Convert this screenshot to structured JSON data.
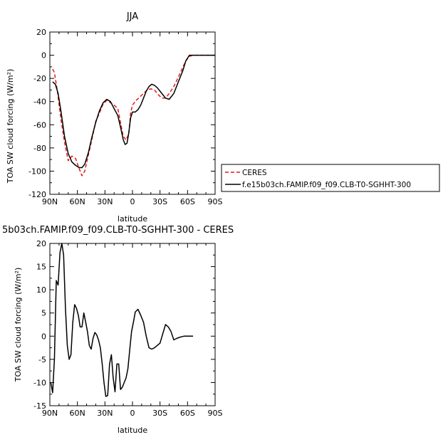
{
  "chart_data": [
    {
      "type": "line",
      "title": "JJA",
      "xlabel": "latitude",
      "ylabel": "TOA SW cloud forcing (W/m²)",
      "xlim": [
        90,
        -90
      ],
      "ylim": [
        -120,
        20
      ],
      "xtick_values": [
        90,
        60,
        30,
        0,
        -30,
        -60,
        -90
      ],
      "xtick_labels": [
        "90N",
        "60N",
        "30N",
        "0",
        "30S",
        "60S",
        "90S"
      ],
      "yticks": [
        20,
        0,
        -20,
        -40,
        -60,
        -80,
        -100,
        -120
      ],
      "legend": "right",
      "series": [
        {
          "name": "CERES",
          "color": "#e41a1c",
          "style": "dashed",
          "points": [
            [
              87,
              -12
            ],
            [
              85,
              -15
            ],
            [
              82,
              -30
            ],
            [
              78,
              -55
            ],
            [
              74,
              -75
            ],
            [
              70,
              -91
            ],
            [
              66,
              -87
            ],
            [
              62,
              -89
            ],
            [
              58,
              -98
            ],
            [
              55,
              -104
            ],
            [
              52,
              -100
            ],
            [
              48,
              -86
            ],
            [
              44,
              -72
            ],
            [
              40,
              -57
            ],
            [
              36,
              -50
            ],
            [
              32,
              -42
            ],
            [
              28,
              -39
            ],
            [
              24,
              -41
            ],
            [
              20,
              -43
            ],
            [
              16,
              -46
            ],
            [
              13,
              -58
            ],
            [
              10,
              -70
            ],
            [
              7,
              -73
            ],
            [
              4,
              -68
            ],
            [
              2,
              -50
            ],
            [
              0,
              -43
            ],
            [
              -4,
              -39
            ],
            [
              -8,
              -36
            ],
            [
              -12,
              -33
            ],
            [
              -16,
              -30
            ],
            [
              -20,
              -29
            ],
            [
              -24,
              -30
            ],
            [
              -28,
              -34
            ],
            [
              -32,
              -37
            ],
            [
              -36,
              -37
            ],
            [
              -40,
              -33
            ],
            [
              -45,
              -27
            ],
            [
              -50,
              -19
            ],
            [
              -55,
              -10
            ],
            [
              -58,
              -5
            ],
            [
              -62,
              -1
            ],
            [
              -66,
              0
            ],
            [
              -70,
              0
            ],
            [
              -80,
              0
            ],
            [
              -90,
              0
            ]
          ]
        },
        {
          "name": "f.e15b03ch.FAMIP.f09_f09.CLB-T0-SGHHT-300",
          "color": "#000000",
          "style": "solid",
          "points": [
            [
              87,
              -23
            ],
            [
              84,
              -25
            ],
            [
              81,
              -33
            ],
            [
              78,
              -48
            ],
            [
              74,
              -70
            ],
            [
              70,
              -85
            ],
            [
              66,
              -92
            ],
            [
              62,
              -95
            ],
            [
              58,
              -97
            ],
            [
              55,
              -97
            ],
            [
              52,
              -94
            ],
            [
              48,
              -84
            ],
            [
              44,
              -70
            ],
            [
              40,
              -58
            ],
            [
              36,
              -48
            ],
            [
              32,
              -41
            ],
            [
              28,
              -38
            ],
            [
              24,
              -40
            ],
            [
              20,
              -46
            ],
            [
              16,
              -52
            ],
            [
              13,
              -62
            ],
            [
              10,
              -73
            ],
            [
              8,
              -77
            ],
            [
              6,
              -76
            ],
            [
              4,
              -67
            ],
            [
              2,
              -54
            ],
            [
              0,
              -49
            ],
            [
              -3,
              -49
            ],
            [
              -6,
              -47
            ],
            [
              -9,
              -43
            ],
            [
              -12,
              -37
            ],
            [
              -15,
              -31
            ],
            [
              -18,
              -27
            ],
            [
              -21,
              -25
            ],
            [
              -24,
              -26
            ],
            [
              -27,
              -28
            ],
            [
              -30,
              -31
            ],
            [
              -33,
              -34
            ],
            [
              -36,
              -37
            ],
            [
              -40,
              -38
            ],
            [
              -45,
              -33
            ],
            [
              -50,
              -23
            ],
            [
              -55,
              -13
            ],
            [
              -58,
              -5
            ],
            [
              -62,
              0
            ],
            [
              -66,
              0
            ],
            [
              -70,
              0
            ],
            [
              -80,
              0
            ],
            [
              -90,
              0
            ]
          ]
        }
      ]
    },
    {
      "type": "line",
      "title": "5b03ch.FAMIP.f09_f09.CLB-T0-SGHHT-300 - CERES",
      "xlabel": "latitude",
      "ylabel": "TOA SW cloud forcing (W/m²)",
      "xlim": [
        90,
        -90
      ],
      "ylim": [
        -15,
        20
      ],
      "xtick_values": [
        90,
        60,
        30,
        0,
        -30,
        -60,
        -90
      ],
      "xtick_labels": [
        "90N",
        "60N",
        "30N",
        "0",
        "30S",
        "60S",
        "90S"
      ],
      "yticks": [
        20,
        15,
        10,
        5,
        0,
        -5,
        -10,
        -15
      ],
      "series": [
        {
          "color": "#000000",
          "style": "solid",
          "points": [
            [
              89,
              -10
            ],
            [
              87,
              -12.2
            ],
            [
              85,
              -5
            ],
            [
              83,
              12
            ],
            [
              81,
              11
            ],
            [
              79,
              18
            ],
            [
              77,
              20
            ],
            [
              75,
              17.5
            ],
            [
              73,
              6
            ],
            [
              71,
              -2
            ],
            [
              69,
              -5
            ],
            [
              67,
              -4
            ],
            [
              65,
              3
            ],
            [
              63,
              6.8
            ],
            [
              61,
              6
            ],
            [
              59,
              4.5
            ],
            [
              57,
              2
            ],
            [
              55,
              2
            ],
            [
              53,
              5
            ],
            [
              51,
              3
            ],
            [
              49,
              1
            ],
            [
              47,
              -2
            ],
            [
              45,
              -2.8
            ],
            [
              43,
              -0.5
            ],
            [
              41,
              0.8
            ],
            [
              39,
              0.3
            ],
            [
              37,
              -0.8
            ],
            [
              35,
              -2.5
            ],
            [
              33,
              -6
            ],
            [
              31,
              -10
            ],
            [
              29,
              -13
            ],
            [
              27,
              -12.8
            ],
            [
              25,
              -6
            ],
            [
              23,
              -4
            ],
            [
              21,
              -9
            ],
            [
              19,
              -12
            ],
            [
              17,
              -6
            ],
            [
              15,
              -6
            ],
            [
              13,
              -11.5
            ],
            [
              11,
              -11
            ],
            [
              9,
              -10
            ],
            [
              7,
              -9
            ],
            [
              5,
              -7
            ],
            [
              3,
              -3
            ],
            [
              1,
              1
            ],
            [
              -1,
              3
            ],
            [
              -3,
              5.2
            ],
            [
              -6,
              5.8
            ],
            [
              -9,
              4.5
            ],
            [
              -12,
              3
            ],
            [
              -15,
              0
            ],
            [
              -18,
              -2.5
            ],
            [
              -21,
              -2.8
            ],
            [
              -24,
              -2.5
            ],
            [
              -27,
              -2
            ],
            [
              -30,
              -1.5
            ],
            [
              -33,
              0.5
            ],
            [
              -36,
              2.5
            ],
            [
              -39,
              2
            ],
            [
              -42,
              1
            ],
            [
              -45,
              -0.8
            ],
            [
              -48,
              -0.5
            ],
            [
              -52,
              -0.2
            ],
            [
              -56,
              0
            ],
            [
              -60,
              0
            ],
            [
              -66,
              0
            ]
          ]
        }
      ]
    }
  ]
}
